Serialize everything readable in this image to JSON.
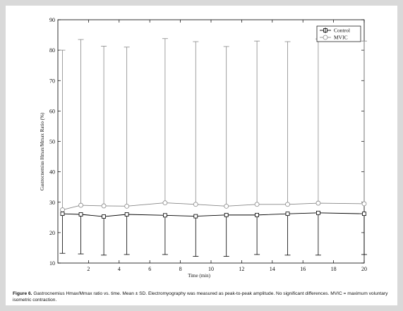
{
  "caption": {
    "label": "Figure 6.",
    "text": "Gastrocnemius Hmax/Mmax ratio vs. time. Mean ± SD. Electromyography was measured as peak-to-peak amplitude. No significant differences. MVIC = maximum voluntary isometric contraction."
  },
  "chart_data": {
    "type": "line",
    "title": "",
    "xlabel": "Time (min)",
    "ylabel": "Gastrocnemius Hmax/Mmax Ratio (%)",
    "xlim": [
      0,
      20
    ],
    "ylim": [
      10,
      90
    ],
    "xticks": [
      2,
      4,
      6,
      8,
      10,
      12,
      14,
      16,
      18,
      20
    ],
    "yticks": [
      10,
      20,
      30,
      40,
      50,
      60,
      70,
      80,
      90
    ],
    "grid": false,
    "legend_position": "top-right",
    "x": [
      0.3,
      1.5,
      3,
      4.5,
      7,
      9,
      11,
      13,
      15,
      17,
      20
    ],
    "series": [
      {
        "name": "Control",
        "marker": "square",
        "color": "#000000",
        "values": [
          26.2,
          26.0,
          25.3,
          26.0,
          25.7,
          25.4,
          25.8,
          25.8,
          26.2,
          26.5,
          26.2
        ],
        "sd": [
          13.0,
          13.0,
          12.7,
          13.2,
          12.9,
          13.2,
          13.6,
          13.0,
          13.6,
          13.9,
          13.4
        ]
      },
      {
        "name": "MVIC",
        "marker": "circle",
        "color": "#888888",
        "values": [
          27.5,
          29.0,
          28.8,
          28.7,
          29.8,
          29.3,
          28.7,
          29.3,
          29.3,
          29.7,
          29.5
        ],
        "sd": [
          52.5,
          54.5,
          52.5,
          52.3,
          54.0,
          53.5,
          52.5,
          53.7,
          53.5,
          54.0,
          53.5
        ]
      }
    ]
  }
}
